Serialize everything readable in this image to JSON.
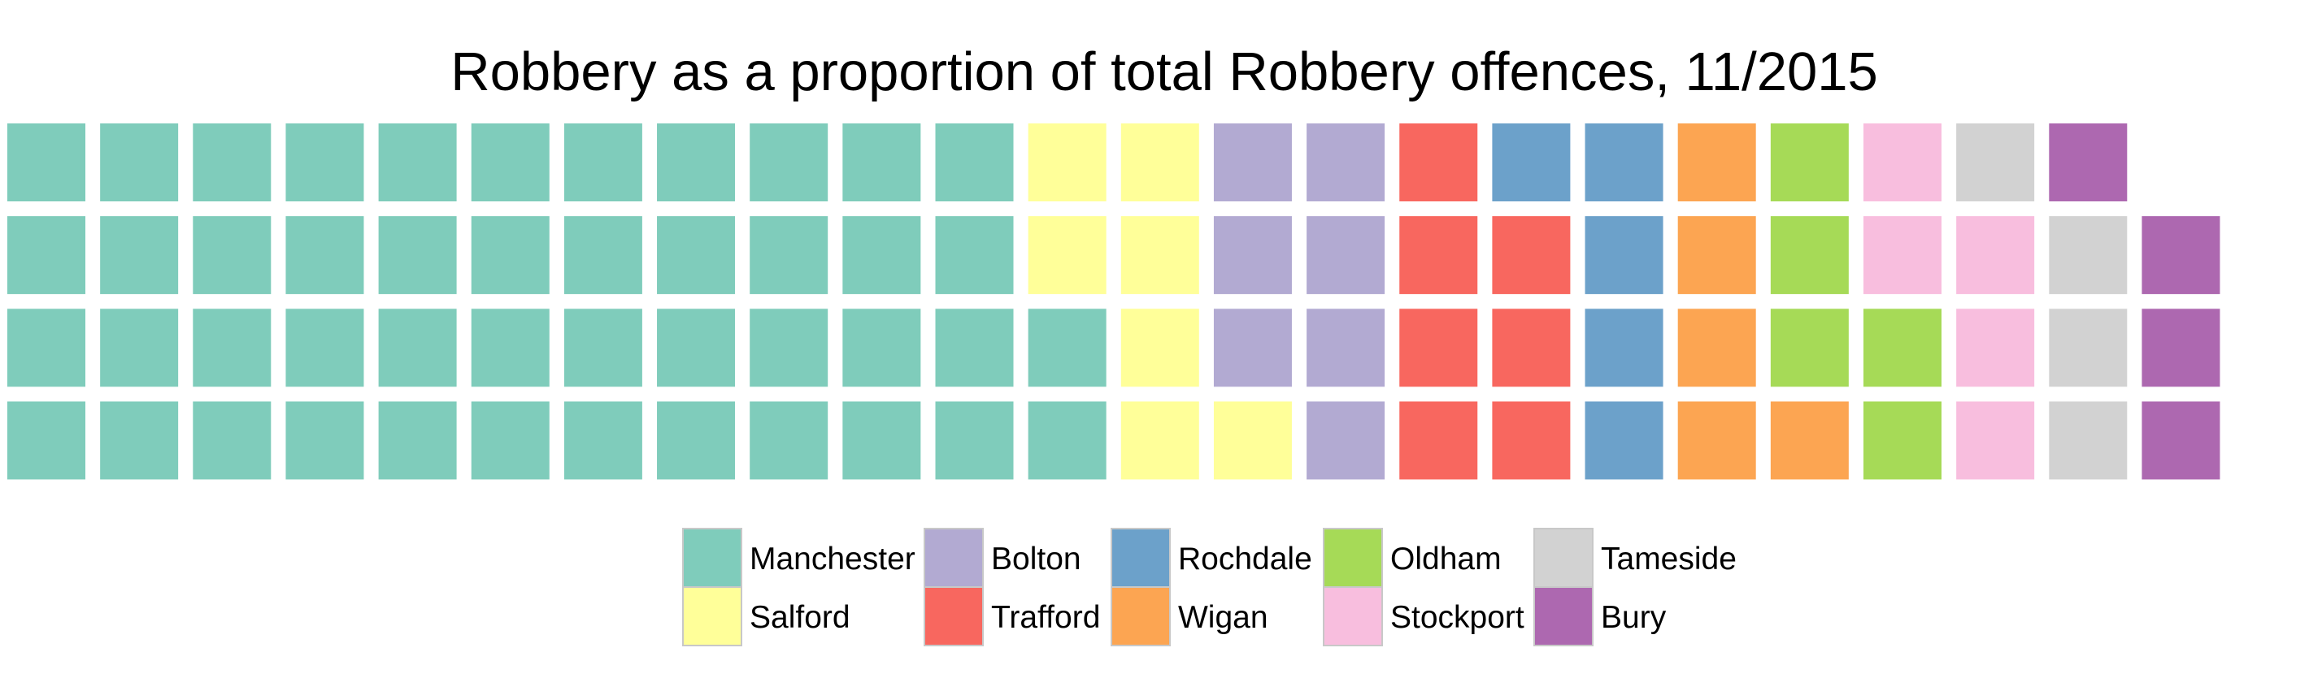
{
  "chart_data": {
    "type": "waffle",
    "title": "Robbery as a proportion of total Robbery offences, 11/2015",
    "rows": 4,
    "fill_order": "column-major, bottom-to-top",
    "series": [
      {
        "name": "Manchester",
        "squares": 46,
        "color": "#7FCCBB"
      },
      {
        "name": "Salford",
        "squares": 7,
        "color": "#FFFF99"
      },
      {
        "name": "Bolton",
        "squares": 7,
        "color": "#B2AAD2"
      },
      {
        "name": "Trafford",
        "squares": 7,
        "color": "#F8675F"
      },
      {
        "name": "Rochdale",
        "squares": 5,
        "color": "#6CA1CA"
      },
      {
        "name": "Wigan",
        "squares": 5,
        "color": "#FCA552"
      },
      {
        "name": "Oldham",
        "squares": 5,
        "color": "#A6DA57"
      },
      {
        "name": "Stockport",
        "squares": 5,
        "color": "#F8BEDE"
      },
      {
        "name": "Tameside",
        "squares": 4,
        "color": "#D2D2D2"
      },
      {
        "name": "Bury",
        "squares": 4,
        "color": "#AD68B0"
      }
    ],
    "legend": {
      "position": "bottom",
      "columns": 5,
      "rows": 2
    }
  }
}
